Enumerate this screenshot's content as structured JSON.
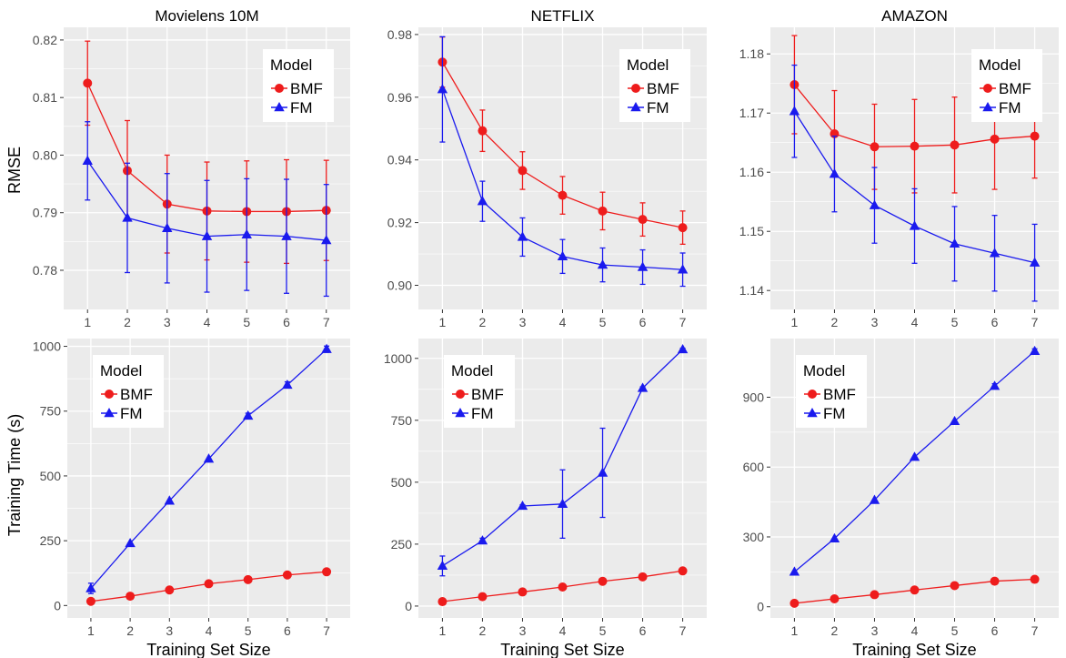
{
  "figure": {
    "x_label": "Training Set Size",
    "y_label_top": "RMSE",
    "y_label_bottom": "Training Time (s)"
  },
  "colors": {
    "BMF": "#ee1c1c",
    "FM": "#1a1aee",
    "panel_bg": "#ebebeb",
    "grid": "#ffffff"
  },
  "chart_data": [
    {
      "type": "line",
      "title": "Movielens 10M",
      "ylabel": "RMSE",
      "xlabel": "",
      "x": [
        1,
        2,
        3,
        4,
        5,
        6,
        7
      ],
      "ylim": [
        0.7732,
        0.8222
      ],
      "yticks": [
        0.78,
        0.79,
        0.8,
        0.81,
        0.82
      ],
      "ytick_labels": [
        "0.78",
        "0.79",
        "0.80",
        "0.81",
        "0.82"
      ],
      "legend": {
        "title": "Model",
        "position": "top-right"
      },
      "series": [
        {
          "name": "BMF",
          "marker": "circle",
          "values": [
            0.8125,
            0.7973,
            0.7915,
            0.7903,
            0.7902,
            0.7902,
            0.7904
          ],
          "err": [
            0.0073,
            0.0087,
            0.0085,
            0.0085,
            0.0088,
            0.009,
            0.0087
          ]
        },
        {
          "name": "FM",
          "marker": "triangle",
          "values": [
            0.799,
            0.7891,
            0.7873,
            0.7859,
            0.7862,
            0.7859,
            0.7852
          ],
          "err": [
            0.0068,
            0.0095,
            0.0095,
            0.0097,
            0.0097,
            0.0099,
            0.0097
          ]
        }
      ]
    },
    {
      "type": "line",
      "title": "NETFLIX",
      "ylabel": "",
      "xlabel": "",
      "x": [
        1,
        2,
        3,
        4,
        5,
        6,
        7
      ],
      "ylim": [
        0.8923,
        0.9823
      ],
      "yticks": [
        0.9,
        0.92,
        0.94,
        0.96,
        0.98
      ],
      "ytick_labels": [
        "0.90",
        "0.92",
        "0.94",
        "0.96",
        "0.98"
      ],
      "legend": {
        "title": "Model",
        "position": "top-right"
      },
      "series": [
        {
          "name": "BMF",
          "marker": "circle",
          "values": [
            0.9712,
            0.9493,
            0.9366,
            0.9287,
            0.9237,
            0.921,
            0.9184
          ],
          "err": [
            0.008,
            0.0066,
            0.006,
            0.006,
            0.006,
            0.0053,
            0.0053
          ]
        },
        {
          "name": "FM",
          "marker": "triangle",
          "values": [
            0.9625,
            0.9268,
            0.9154,
            0.9092,
            0.9065,
            0.9058,
            0.905
          ],
          "err": [
            0.0168,
            0.0064,
            0.0061,
            0.0054,
            0.0054,
            0.0055,
            0.0053
          ]
        }
      ]
    },
    {
      "type": "line",
      "title": "AMAZON",
      "ylabel": "",
      "xlabel": "",
      "x": [
        1,
        2,
        3,
        4,
        5,
        6,
        7
      ],
      "ylim": [
        1.1368,
        1.1845
      ],
      "yticks": [
        1.14,
        1.15,
        1.16,
        1.17,
        1.18
      ],
      "ytick_labels": [
        "1.14",
        "1.15",
        "1.16",
        "1.17",
        "1.18"
      ],
      "legend": {
        "title": "Model",
        "position": "top-right"
      },
      "series": [
        {
          "name": "BMF",
          "marker": "circle",
          "values": [
            1.1748,
            1.1665,
            1.1643,
            1.1644,
            1.1646,
            1.1656,
            1.1661
          ],
          "err": [
            0.0083,
            0.0073,
            0.0072,
            0.0079,
            0.0081,
            0.0085,
            0.0071
          ]
        },
        {
          "name": "FM",
          "marker": "triangle",
          "values": [
            1.1703,
            1.1597,
            1.1544,
            1.1509,
            1.1479,
            1.1463,
            1.1447
          ],
          "err": [
            0.0078,
            0.0064,
            0.0064,
            0.0063,
            0.0063,
            0.0064,
            0.0065
          ]
        }
      ]
    },
    {
      "type": "line",
      "title": "",
      "ylabel": "Training Time (s)",
      "xlabel": "Training Set Size",
      "x": [
        1,
        2,
        3,
        4,
        5,
        6,
        7
      ],
      "ylim": [
        -48,
        1030
      ],
      "yticks": [
        0,
        250,
        500,
        750,
        1000
      ],
      "ytick_labels": [
        "0",
        "250",
        "500",
        "750",
        "1000"
      ],
      "legend": {
        "title": "Model",
        "position": "top-left"
      },
      "series": [
        {
          "name": "BMF",
          "marker": "circle",
          "values": [
            16,
            36,
            60,
            84,
            100,
            118,
            130
          ],
          "err": [
            0,
            0,
            0,
            0,
            0,
            0,
            0
          ]
        },
        {
          "name": "FM",
          "marker": "triangle",
          "values": [
            66,
            240,
            404,
            566,
            732,
            851,
            989
          ],
          "err": [
            20,
            0,
            0,
            0,
            10,
            12,
            12
          ]
        }
      ]
    },
    {
      "type": "line",
      "title": "",
      "ylabel": "",
      "xlabel": "Training Set Size",
      "x": [
        1,
        2,
        3,
        4,
        5,
        6,
        7
      ],
      "ylim": [
        -48,
        1080
      ],
      "yticks": [
        0,
        250,
        500,
        750,
        1000
      ],
      "ytick_labels": [
        "0",
        "250",
        "500",
        "750",
        "1000"
      ],
      "legend": {
        "title": "Model",
        "position": "top-left"
      },
      "series": [
        {
          "name": "BMF",
          "marker": "circle",
          "values": [
            18,
            38,
            57,
            77,
            100,
            118,
            142
          ],
          "err": [
            0,
            0,
            0,
            0,
            0,
            0,
            0
          ]
        },
        {
          "name": "FM",
          "marker": "triangle",
          "values": [
            162,
            264,
            404,
            412,
            538,
            880,
            1036
          ],
          "err": [
            40,
            10,
            5,
            138,
            180,
            5,
            5
          ]
        }
      ]
    },
    {
      "type": "line",
      "title": "",
      "ylabel": "",
      "xlabel": "Training Set Size",
      "x": [
        1,
        2,
        3,
        4,
        5,
        6,
        7
      ],
      "ylim": [
        -48,
        1152
      ],
      "yticks": [
        0,
        300,
        600,
        900
      ],
      "ytick_labels": [
        "0",
        "300",
        "600",
        "900"
      ],
      "legend": {
        "title": "Model",
        "position": "top-left"
      },
      "series": [
        {
          "name": "BMF",
          "marker": "circle",
          "values": [
            15,
            34,
            52,
            72,
            91,
            110,
            118
          ],
          "err": [
            0,
            0,
            0,
            0,
            0,
            0,
            0
          ]
        },
        {
          "name": "FM",
          "marker": "triangle",
          "values": [
            150,
            293,
            458,
            643,
            797,
            948,
            1098
          ],
          "err": [
            0,
            0,
            0,
            0,
            0,
            10,
            10
          ]
        }
      ]
    }
  ]
}
